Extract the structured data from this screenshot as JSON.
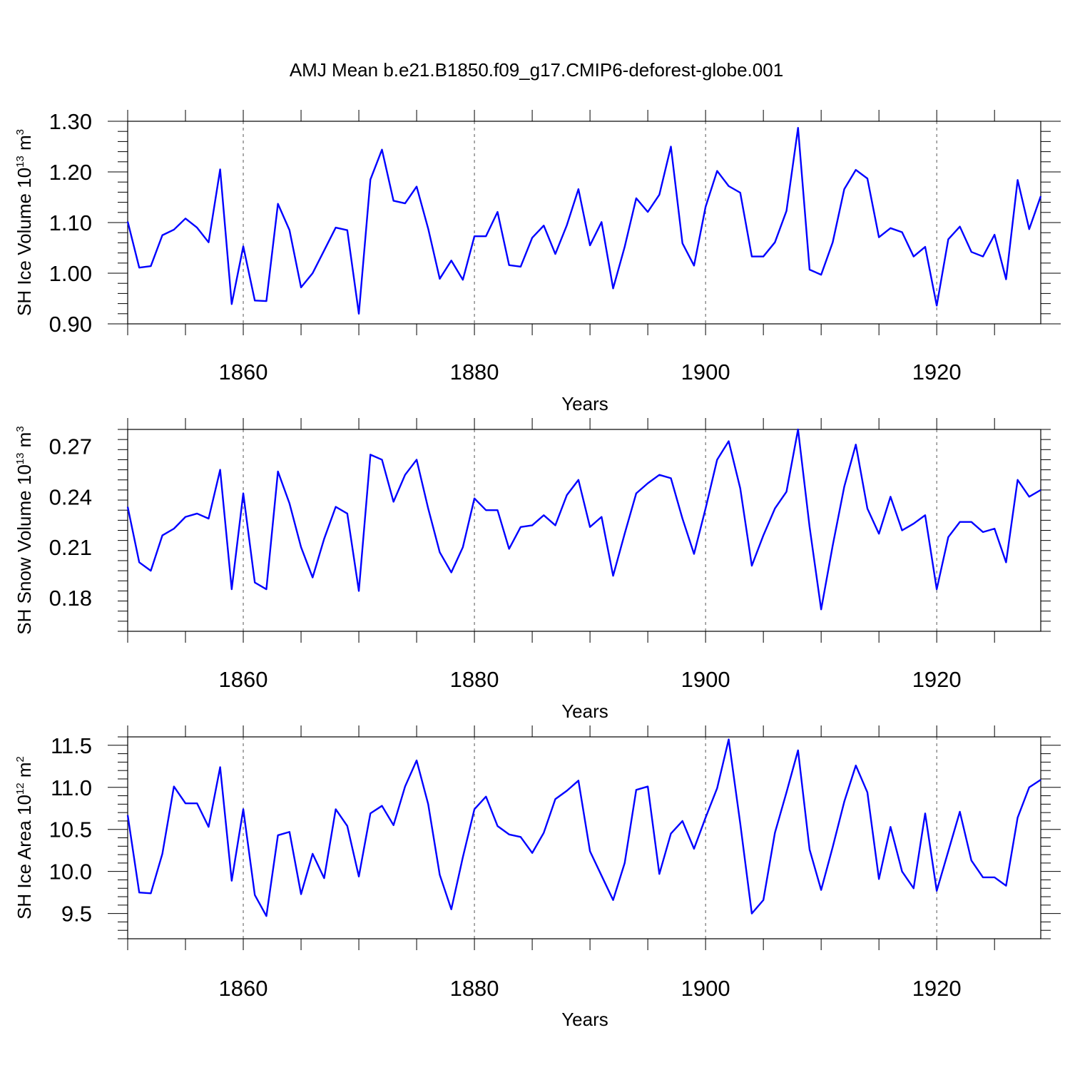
{
  "figure": {
    "title": "AMJ Mean b.e21.B1850.f09_g17.CMIP6-deforest-globe.001",
    "line_color": "#0000ff",
    "grid_color": "#555555"
  },
  "chart_data": [
    {
      "type": "line",
      "xlabel": "Years",
      "ylabel": "SH Ice Volume 10",
      "ylabel_exp": "13",
      "ylabel_unit": " m",
      "ylabel_unit_exp": "3",
      "xlim": [
        1850,
        1929
      ],
      "ylim": [
        0.9,
        1.3
      ],
      "xticks": [
        1860,
        1880,
        1900,
        1920
      ],
      "xtick_labels": [
        "1860",
        "1880",
        "1900",
        "1920"
      ],
      "yticks": [
        0.9,
        1.0,
        1.1,
        1.2,
        1.3
      ],
      "ytick_labels": [
        "0.90",
        "1.00",
        "1.10",
        "1.20",
        "1.30"
      ],
      "x_start": 1850,
      "values": [
        1.102,
        1.011,
        1.014,
        1.075,
        1.086,
        1.108,
        1.09,
        1.061,
        1.205,
        0.939,
        1.053,
        0.946,
        0.945,
        1.137,
        1.085,
        0.972,
        1.0,
        1.045,
        1.09,
        1.085,
        0.92,
        1.185,
        1.244,
        1.143,
        1.138,
        1.171,
        1.088,
        0.989,
        1.025,
        0.987,
        1.073,
        1.073,
        1.121,
        1.016,
        1.013,
        1.07,
        1.094,
        1.038,
        1.095,
        1.166,
        1.055,
        1.101,
        0.97,
        1.052,
        1.148,
        1.121,
        1.155,
        1.25,
        1.059,
        1.015,
        1.131,
        1.202,
        1.172,
        1.159,
        1.033,
        1.033,
        1.061,
        1.123,
        1.287,
        1.007,
        0.997,
        1.061,
        1.166,
        1.204,
        1.187,
        1.071,
        1.089,
        1.081,
        1.033,
        1.052,
        0.936,
        1.067,
        1.092,
        1.042,
        1.033,
        1.076,
        0.988,
        1.184,
        1.087,
        1.152
      ]
    },
    {
      "type": "line",
      "xlabel": "Years",
      "ylabel": "SH Snow Volume 10",
      "ylabel_exp": "13",
      "ylabel_unit": " m",
      "ylabel_unit_exp": "3",
      "xlim": [
        1850,
        1929
      ],
      "ylim": [
        0.16,
        0.28
      ],
      "xticks": [
        1860,
        1880,
        1900,
        1920
      ],
      "xtick_labels": [
        "1860",
        "1880",
        "1900",
        "1920"
      ],
      "yticks": [
        0.18,
        0.21,
        0.24,
        0.27
      ],
      "ytick_labels": [
        "0.18",
        "0.21",
        "0.24",
        "0.27"
      ],
      "x_start": 1850,
      "values": [
        0.234,
        0.201,
        0.196,
        0.217,
        0.221,
        0.228,
        0.23,
        0.227,
        0.256,
        0.185,
        0.242,
        0.189,
        0.185,
        0.255,
        0.236,
        0.21,
        0.192,
        0.215,
        0.234,
        0.23,
        0.184,
        0.265,
        0.262,
        0.237,
        0.253,
        0.262,
        0.233,
        0.207,
        0.195,
        0.21,
        0.239,
        0.232,
        0.232,
        0.209,
        0.222,
        0.223,
        0.229,
        0.223,
        0.241,
        0.25,
        0.222,
        0.228,
        0.193,
        0.218,
        0.242,
        0.248,
        0.253,
        0.251,
        0.227,
        0.206,
        0.233,
        0.262,
        0.273,
        0.245,
        0.199,
        0.217,
        0.233,
        0.243,
        0.28,
        0.222,
        0.173,
        0.211,
        0.246,
        0.271,
        0.233,
        0.218,
        0.24,
        0.22,
        0.224,
        0.229,
        0.185,
        0.216,
        0.225,
        0.225,
        0.219,
        0.221,
        0.201,
        0.25,
        0.24,
        0.244
      ]
    },
    {
      "type": "line",
      "xlabel": "Years",
      "ylabel": "SH Ice Area 10",
      "ylabel_exp": "12",
      "ylabel_unit": " m",
      "ylabel_unit_exp": "2",
      "xlim": [
        1850,
        1929
      ],
      "ylim": [
        9.2,
        11.6
      ],
      "xticks": [
        1860,
        1880,
        1900,
        1920
      ],
      "xtick_labels": [
        "1860",
        "1880",
        "1900",
        "1920"
      ],
      "yticks": [
        9.5,
        10.0,
        10.5,
        11.0,
        11.5
      ],
      "ytick_labels": [
        "9.5",
        "10.0",
        "10.5",
        "11.0",
        "11.5"
      ],
      "x_start": 1850,
      "values": [
        10.67,
        9.75,
        9.74,
        10.21,
        11.01,
        10.81,
        10.81,
        10.53,
        11.24,
        9.89,
        10.74,
        9.72,
        9.47,
        10.43,
        10.47,
        9.73,
        10.21,
        9.92,
        10.74,
        10.54,
        9.94,
        10.69,
        10.78,
        10.55,
        11.01,
        11.32,
        10.8,
        9.96,
        9.55,
        10.17,
        10.74,
        10.89,
        10.54,
        10.44,
        10.41,
        10.22,
        10.46,
        10.86,
        10.96,
        11.08,
        10.24,
        9.95,
        9.66,
        10.1,
        10.97,
        11.01,
        9.97,
        10.45,
        10.6,
        10.27,
        10.64,
        10.99,
        11.57,
        10.57,
        9.5,
        9.66,
        10.46,
        10.94,
        11.44,
        10.26,
        9.78,
        10.29,
        10.83,
        11.26,
        10.94,
        9.91,
        10.53,
        10.0,
        9.8,
        10.69,
        9.77,
        10.24,
        10.71,
        10.13,
        9.93,
        9.93,
        9.83,
        10.64,
        11.0,
        11.09
      ]
    }
  ]
}
